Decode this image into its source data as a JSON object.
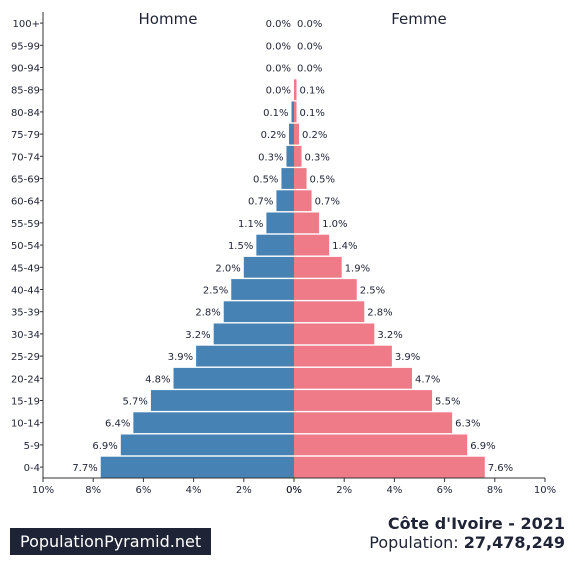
{
  "chart_data": {
    "type": "bar",
    "orientation": "horizontal-population-pyramid",
    "categories": [
      "100+",
      "95-99",
      "90-94",
      "85-89",
      "80-84",
      "75-79",
      "70-74",
      "65-69",
      "60-64",
      "55-59",
      "50-54",
      "45-49",
      "40-44",
      "35-39",
      "30-34",
      "25-29",
      "20-24",
      "15-19",
      "10-14",
      "5-9",
      "0-4"
    ],
    "series": [
      {
        "name": "Homme",
        "color": "#4682b4",
        "values": [
          0.0,
          0.0,
          0.0,
          0.0,
          0.1,
          0.2,
          0.3,
          0.5,
          0.7,
          1.1,
          1.5,
          2.0,
          2.5,
          2.8,
          3.2,
          3.9,
          4.8,
          5.7,
          6.4,
          6.9,
          7.7
        ],
        "labels": [
          "0.0%",
          "0.0%",
          "0.0%",
          "0.0%",
          "0.1%",
          "0.2%",
          "0.3%",
          "0.5%",
          "0.7%",
          "1.1%",
          "1.5%",
          "2.0%",
          "2.5%",
          "2.8%",
          "3.2%",
          "3.9%",
          "4.8%",
          "5.7%",
          "6.4%",
          "6.9%",
          "7.7%"
        ]
      },
      {
        "name": "Femme",
        "color": "#ef7b89",
        "values": [
          0.0,
          0.0,
          0.0,
          0.1,
          0.1,
          0.2,
          0.3,
          0.5,
          0.7,
          1.0,
          1.4,
          1.9,
          2.5,
          2.8,
          3.2,
          3.9,
          4.7,
          5.5,
          6.3,
          6.9,
          7.6
        ],
        "labels": [
          "0.0%",
          "0.0%",
          "0.0%",
          "0.1%",
          "0.1%",
          "0.2%",
          "0.3%",
          "0.5%",
          "0.7%",
          "1.0%",
          "1.4%",
          "1.9%",
          "2.5%",
          "2.8%",
          "3.2%",
          "3.9%",
          "4.7%",
          "5.5%",
          "6.3%",
          "6.9%",
          "7.6%"
        ]
      }
    ],
    "xlim": [
      0,
      10
    ],
    "left_ticks": [
      "10%",
      "8%",
      "6%",
      "4%",
      "2%",
      "0%"
    ],
    "right_ticks": [
      "0%",
      "2%",
      "4%",
      "6%",
      "8%",
      "10%"
    ],
    "tick_values": [
      10,
      8,
      6,
      4,
      2,
      0
    ],
    "grid": false
  },
  "footer": {
    "brand": "PopulationPyramid.net",
    "country_year": "Côte d'Ivoire - 2021",
    "population_label": "Population:",
    "population_value": "27,478,249"
  }
}
